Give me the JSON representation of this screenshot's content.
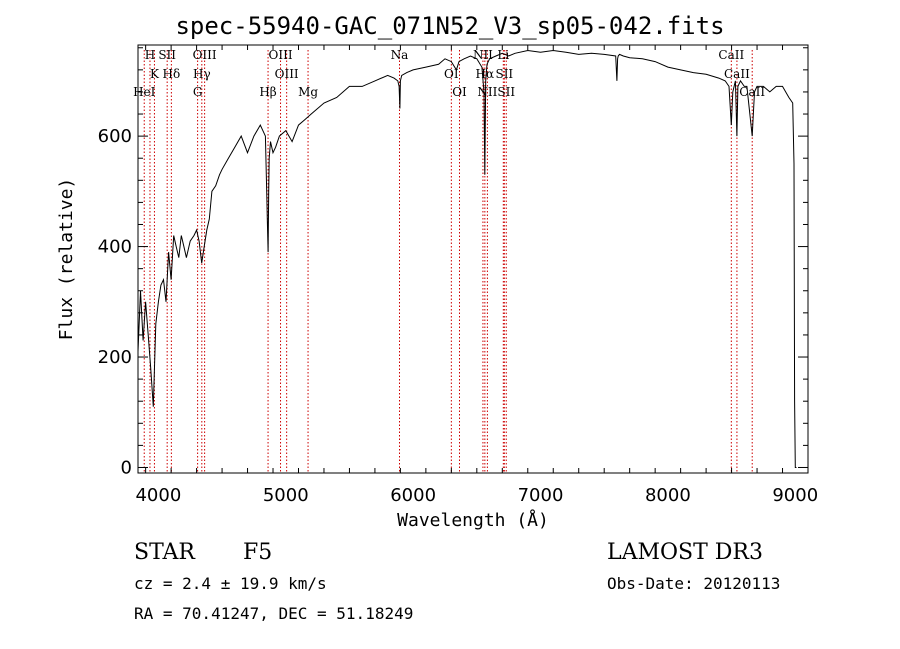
{
  "chart_data": {
    "type": "line",
    "title": "spec-55940-GAC_071N52_V3_sp05-042.fits",
    "xlabel": "Wavelength (Å)",
    "ylabel": "Flux (relative)",
    "xlim": [
      3840,
      9100
    ],
    "ylim": [
      -10,
      765
    ],
    "xticks": [
      4000,
      5000,
      6000,
      7000,
      8000,
      9000
    ],
    "yticks": [
      0,
      200,
      400,
      600
    ],
    "grid": false,
    "series": [
      {
        "color": "#000000",
        "x": [
          3840,
          3860,
          3880,
          3900,
          3920,
          3940,
          3960,
          3980,
          4000,
          4020,
          4040,
          4060,
          4080,
          4100,
          4120,
          4140,
          4160,
          4180,
          4200,
          4220,
          4250,
          4280,
          4300,
          4320,
          4340,
          4360,
          4380,
          4400,
          4420,
          4450,
          4480,
          4500,
          4550,
          4600,
          4650,
          4700,
          4750,
          4800,
          4840,
          4850,
          4855,
          4861,
          4866,
          4870,
          4880,
          4900,
          4920,
          4950,
          5000,
          5050,
          5100,
          5150,
          5200,
          5300,
          5400,
          5500,
          5600,
          5700,
          5800,
          5850,
          5880,
          5890,
          5896,
          5900,
          5910,
          5950,
          6000,
          6100,
          6200,
          6250,
          6300,
          6340,
          6360,
          6400,
          6450,
          6500,
          6540,
          6556,
          6563,
          6570,
          6580,
          6600,
          6650,
          6700,
          6750,
          6800,
          6900,
          7000,
          7100,
          7200,
          7300,
          7400,
          7500,
          7590,
          7600,
          7605,
          7610,
          7620,
          7650,
          7700,
          7800,
          7900,
          8000,
          8100,
          8200,
          8300,
          8400,
          8450,
          8480,
          8498,
          8510,
          8530,
          8542,
          8550,
          8570,
          8600,
          8620,
          8662,
          8680,
          8700,
          8750,
          8800,
          8850,
          8900,
          8950,
          8980,
          8990,
          8995,
          9000,
          9010
        ],
        "y": [
          210,
          320,
          230,
          300,
          240,
          180,
          110,
          260,
          300,
          330,
          340,
          300,
          390,
          340,
          420,
          400,
          380,
          420,
          400,
          380,
          410,
          420,
          430,
          410,
          370,
          400,
          430,
          450,
          500,
          510,
          530,
          540,
          560,
          580,
          600,
          570,
          600,
          620,
          600,
          500,
          450,
          390,
          500,
          560,
          590,
          570,
          580,
          600,
          610,
          590,
          620,
          630,
          640,
          660,
          670,
          690,
          690,
          700,
          710,
          705,
          700,
          690,
          650,
          700,
          710,
          715,
          720,
          725,
          730,
          740,
          735,
          720,
          735,
          740,
          745,
          740,
          725,
          680,
          530,
          700,
          730,
          740,
          745,
          750,
          745,
          750,
          755,
          752,
          755,
          752,
          748,
          750,
          748,
          745,
          700,
          740,
          745,
          748,
          745,
          742,
          740,
          735,
          725,
          720,
          715,
          712,
          705,
          700,
          690,
          620,
          680,
          700,
          600,
          690,
          700,
          690,
          690,
          600,
          680,
          690,
          690,
          680,
          690,
          690,
          670,
          660,
          550,
          120,
          0,
          0
        ]
      }
    ],
    "lines": [
      {
        "name": "H",
        "x": 3934
      },
      {
        "name": "K",
        "x": 3969
      },
      {
        "name": "HeI",
        "x": 3889
      },
      {
        "name": "SII",
        "x": 4069
      },
      {
        "name": "Hδ",
        "x": 4102
      },
      {
        "name": "G",
        "x": 4308
      },
      {
        "name": "OIII",
        "x": 4363
      },
      {
        "name": "Hγ",
        "x": 4341
      },
      {
        "name": "Hβ",
        "x": 4861
      },
      {
        "name": "OIII",
        "x": 4959
      },
      {
        "name": "OIII",
        "x": 5007
      },
      {
        "name": "Mg",
        "x": 5175
      },
      {
        "name": "Na",
        "x": 5893
      },
      {
        "name": "OI",
        "x": 6300
      },
      {
        "name": "OI",
        "x": 6364
      },
      {
        "name": "NII",
        "x": 6548
      },
      {
        "name": "Hα",
        "x": 6563
      },
      {
        "name": "NII",
        "x": 6583
      },
      {
        "name": "Li",
        "x": 6708
      },
      {
        "name": "SII",
        "x": 6716
      },
      {
        "name": "SII",
        "x": 6731
      },
      {
        "name": "CaII",
        "x": 8498
      },
      {
        "name": "CaII",
        "x": 8542
      },
      {
        "name": "CaII",
        "x": 8662
      }
    ]
  },
  "info": {
    "class": "STAR",
    "subclass": "F5",
    "survey": "LAMOST DR3",
    "cz": "cz = 2.4 ± 19.9 km/s",
    "obs_date": "Obs-Date: 20120113",
    "coords": "RA =  70.41247, DEC =  51.18249"
  }
}
